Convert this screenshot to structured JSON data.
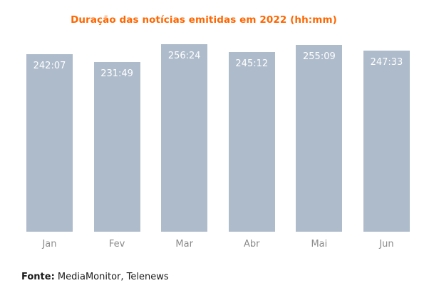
{
  "title": "Duração das notícias emitidas em 2022 (hh:mm)",
  "source": {
    "label": "Fonte:",
    "text": " MediaMonitor, Telenews"
  },
  "chart_data": {
    "type": "bar",
    "title": "Duração das notícias emitidas em 2022 (hh:mm)",
    "categories": [
      "Jan",
      "Fev",
      "Mar",
      "Abr",
      "Mai",
      "Jun"
    ],
    "values": [
      "242:07",
      "231:49",
      "256:24",
      "245:12",
      "255:09",
      "247:33"
    ],
    "values_hours": [
      242.1167,
      231.8167,
      256.4,
      245.2,
      255.15,
      247.55
    ],
    "xlabel": "",
    "ylabel": "",
    "ylim": [
      0,
      265
    ],
    "grid": false,
    "legend": false,
    "bar_color": "#AEBBCB",
    "value_label_color": "#FFFFFF",
    "title_color": "#FF6600",
    "axis_label_color": "#8B8B8B"
  }
}
